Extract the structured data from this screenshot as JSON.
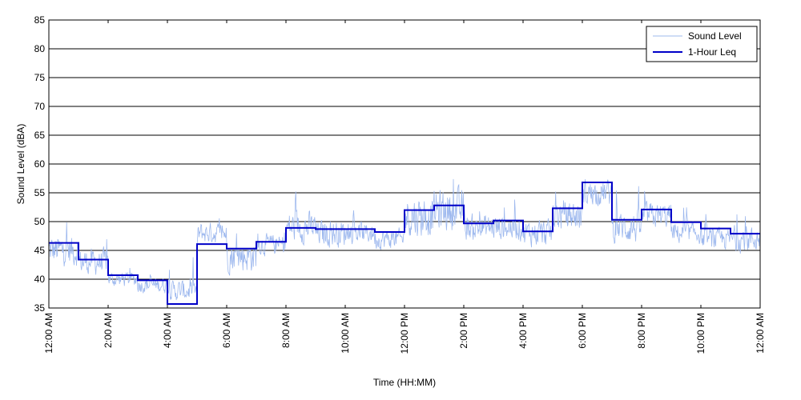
{
  "chart_data": {
    "type": "line",
    "title": "",
    "xlabel": "Time (HH:MM)",
    "ylabel": "Sound Level (dBA)",
    "xlim": [
      0,
      24
    ],
    "ylim": [
      35,
      85
    ],
    "yticks": [
      35,
      40,
      45,
      50,
      55,
      60,
      65,
      70,
      75,
      80,
      85
    ],
    "xticks": [
      {
        "hour": 0,
        "label": "12:00 AM"
      },
      {
        "hour": 2,
        "label": "2:00 AM"
      },
      {
        "hour": 4,
        "label": "4:00 AM"
      },
      {
        "hour": 6,
        "label": "6:00 AM"
      },
      {
        "hour": 8,
        "label": "8:00 AM"
      },
      {
        "hour": 10,
        "label": "10:00 AM"
      },
      {
        "hour": 12,
        "label": "12:00 PM"
      },
      {
        "hour": 14,
        "label": "2:00 PM"
      },
      {
        "hour": 16,
        "label": "4:00 PM"
      },
      {
        "hour": 18,
        "label": "6:00 PM"
      },
      {
        "hour": 20,
        "label": "8:00 PM"
      },
      {
        "hour": 22,
        "label": "10:00 PM"
      },
      {
        "hour": 24,
        "label": "12:00 AM"
      }
    ],
    "grid": "horizontal",
    "legend_position": "top-right",
    "series": [
      {
        "name": "Sound Level",
        "style": "thin-line",
        "color": "#9db8ee",
        "hourly_mean": [
          45,
          43,
          40,
          39,
          38,
          48,
          44,
          46,
          49,
          48,
          48,
          47,
          51,
          52,
          49,
          49,
          48,
          51,
          55,
          49,
          51,
          48,
          47,
          47
        ],
        "hourly_spread": [
          6,
          5,
          3,
          3,
          4,
          4,
          6,
          4,
          6,
          5,
          4,
          4,
          8,
          8,
          5,
          5,
          5,
          6,
          5,
          6,
          5,
          4,
          4,
          5
        ]
      },
      {
        "name": "1-Hour Leq",
        "style": "step",
        "color": "#0000c8",
        "values": [
          46.3,
          43.4,
          40.7,
          39.8,
          35.7,
          46.1,
          45.3,
          46.5,
          48.9,
          48.7,
          48.7,
          48.2,
          52.0,
          52.8,
          49.7,
          50.2,
          48.3,
          52.3,
          56.8,
          50.3,
          52.1,
          49.9,
          48.8,
          47.9
        ]
      }
    ]
  }
}
